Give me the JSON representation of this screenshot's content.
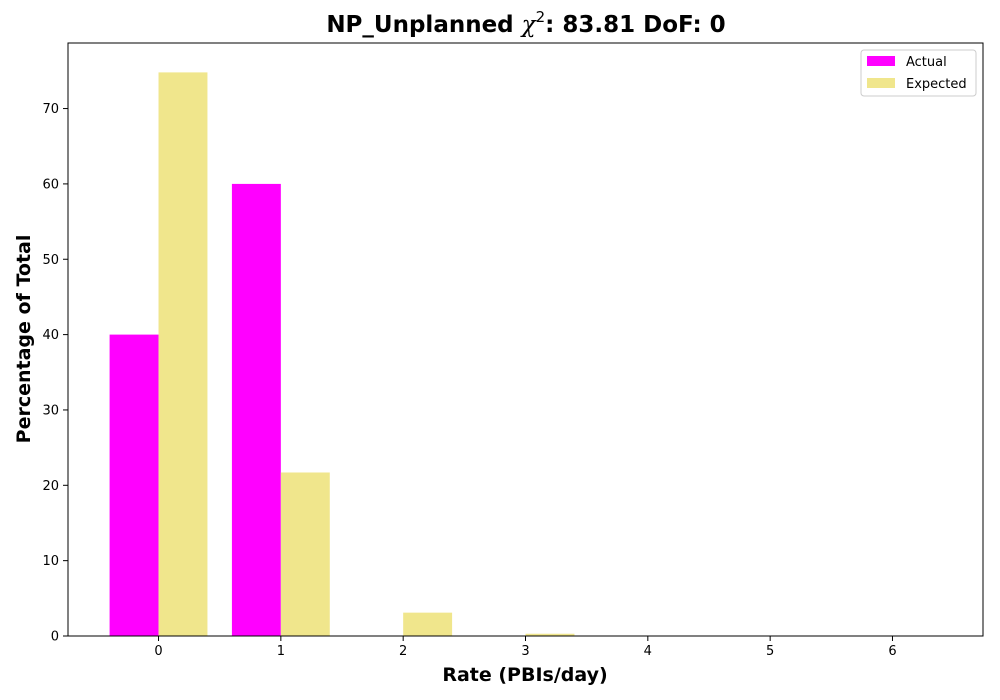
{
  "chart_data": {
    "type": "bar",
    "title": {
      "prefix": "NP_Unplanned ",
      "symbol": "χ",
      "superscript": "2",
      "suffix": ": 83.81 DoF: 0"
    },
    "xlabel": "Rate (PBIs/day)",
    "ylabel": "Percentage of Total",
    "categories": [
      "0",
      "1",
      "2",
      "3",
      "4",
      "5",
      "6"
    ],
    "x": [
      0,
      1,
      2,
      3,
      4,
      5,
      6
    ],
    "xlim": [
      -0.74,
      6.74
    ],
    "ylim": [
      0,
      78.7
    ],
    "yticks": [
      0,
      10,
      20,
      30,
      40,
      50,
      60,
      70
    ],
    "grid": false,
    "legend_position": "top-right",
    "series": [
      {
        "name": "Actual",
        "color": "#ff00ff",
        "values": [
          40.0,
          60.0,
          0.0,
          0.0,
          0.0,
          0.0,
          0.0
        ]
      },
      {
        "name": "Expected",
        "color": "#f0e68c",
        "values": [
          74.8,
          21.7,
          3.1,
          0.3,
          0.0,
          0.0,
          0.0
        ]
      }
    ]
  }
}
